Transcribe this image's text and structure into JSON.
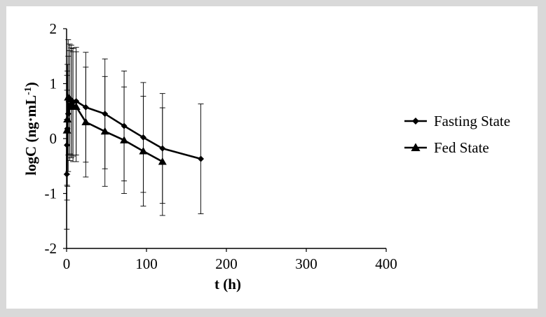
{
  "chart_data": {
    "type": "line",
    "xlabel": "t (h)",
    "ylabel_main": "logC (ng·mL",
    "ylabel_sup": "-1",
    "ylabel_close": ")",
    "xlim": [
      0,
      400
    ],
    "ylim": [
      -2,
      2
    ],
    "x_ticks": [
      0,
      100,
      200,
      300,
      400
    ],
    "y_ticks": [
      -2,
      -1,
      0,
      1,
      2
    ],
    "grid": false,
    "legend_position": "right",
    "series": [
      {
        "name": "Fasting State",
        "marker": "diamond",
        "x": [
          0.25,
          0.5,
          1,
          2,
          4,
          6,
          8,
          12,
          24,
          48,
          72,
          96,
          120,
          168
        ],
        "y": [
          -0.65,
          -0.12,
          0.18,
          0.45,
          0.6,
          0.7,
          0.66,
          0.68,
          0.57,
          0.45,
          0.23,
          0.02,
          -0.18,
          -0.37
        ],
        "err": [
          1.0,
          1.0,
          1.05,
          1.05,
          1.0,
          1.0,
          0.98,
          0.98,
          1.0,
          1.0,
          1.0,
          1.0,
          1.0,
          1.0
        ]
      },
      {
        "name": "Fed State",
        "marker": "triangle",
        "x": [
          0.5,
          1,
          2,
          4,
          6,
          8,
          12,
          24,
          48,
          72,
          96,
          120
        ],
        "y": [
          0.15,
          0.35,
          0.75,
          0.72,
          0.65,
          0.58,
          0.58,
          0.3,
          0.13,
          -0.03,
          -0.23,
          -0.42
        ],
        "err": [
          1.0,
          1.0,
          1.05,
          1.0,
          1.0,
          1.0,
          1.0,
          1.0,
          1.0,
          0.97,
          1.0,
          0.98
        ]
      }
    ]
  },
  "colors": {
    "line": "#000000",
    "background": "#ffffff",
    "border": "#d9d9d9"
  }
}
